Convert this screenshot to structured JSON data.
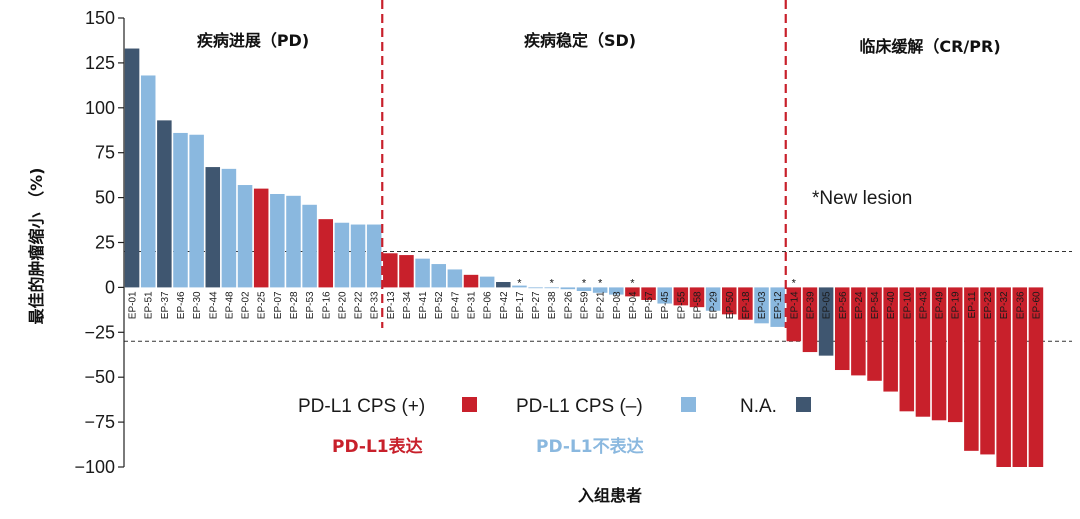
{
  "chart_data": {
    "type": "bar",
    "xlabel": "入组患者",
    "ylabel": "最佳的肿瘤缩小 （%)",
    "ylim": [
      -100,
      150
    ],
    "yticks": [
      150,
      125,
      100,
      75,
      50,
      25,
      0,
      -25,
      -50,
      -75,
      -100
    ],
    "colors": {
      "positive": "#c8202b",
      "negative": "#8ab8df",
      "na": "#3f5670",
      "divider": "#c8202b",
      "reference": "#333333"
    },
    "reference_lines": [
      20,
      -30
    ],
    "regions": [
      {
        "label": "疾病进展（PD)"
      },
      {
        "label": "疾病稳定（SD)"
      },
      {
        "label": "临床缓解（CR/PR)"
      }
    ],
    "region_divider_after": [
      "EP-33",
      "EP-12"
    ],
    "legend": [
      {
        "label": "PD-L1 CPS (+)",
        "group": "positive"
      },
      {
        "label": "PD-L1 CPS (–)",
        "group": "negative"
      },
      {
        "label": "N.A.",
        "group": "na"
      }
    ],
    "legend_cn": {
      "positive": "PD-L1表达",
      "negative": "PD-L1不表达"
    },
    "note": "*New lesion",
    "star_mark": "*",
    "bars": [
      {
        "id": "EP-01",
        "value": 133,
        "group": "na"
      },
      {
        "id": "EP-51",
        "value": 118,
        "group": "negative"
      },
      {
        "id": "EP-37",
        "value": 93,
        "group": "na"
      },
      {
        "id": "EP-46",
        "value": 86,
        "group": "negative"
      },
      {
        "id": "EP-30",
        "value": 85,
        "group": "negative"
      },
      {
        "id": "EP-44",
        "value": 67,
        "group": "na"
      },
      {
        "id": "EP-48",
        "value": 66,
        "group": "negative"
      },
      {
        "id": "EP-02",
        "value": 57,
        "group": "negative"
      },
      {
        "id": "EP-25",
        "value": 55,
        "group": "positive"
      },
      {
        "id": "EP-07",
        "value": 52,
        "group": "negative"
      },
      {
        "id": "EP-28",
        "value": 51,
        "group": "negative"
      },
      {
        "id": "EP-53",
        "value": 46,
        "group": "negative"
      },
      {
        "id": "EP-16",
        "value": 38,
        "group": "positive"
      },
      {
        "id": "EP-20",
        "value": 36,
        "group": "negative"
      },
      {
        "id": "EP-22",
        "value": 35,
        "group": "negative"
      },
      {
        "id": "EP-33",
        "value": 35,
        "group": "negative"
      },
      {
        "id": "EP-13",
        "value": 19,
        "group": "positive"
      },
      {
        "id": "EP-34",
        "value": 18,
        "group": "positive"
      },
      {
        "id": "EP-41",
        "value": 16,
        "group": "negative"
      },
      {
        "id": "EP-52",
        "value": 13,
        "group": "negative"
      },
      {
        "id": "EP-47",
        "value": 10,
        "group": "negative"
      },
      {
        "id": "EP-31",
        "value": 7,
        "group": "positive"
      },
      {
        "id": "EP-06",
        "value": 6,
        "group": "negative"
      },
      {
        "id": "EP-42",
        "value": 3,
        "group": "na"
      },
      {
        "id": "EP-17",
        "value": 1,
        "group": "negative",
        "star": true
      },
      {
        "id": "EP-27",
        "value": 0,
        "group": "negative"
      },
      {
        "id": "EP-38",
        "value": 0,
        "group": "negative",
        "star": true
      },
      {
        "id": "EP-26",
        "value": -1,
        "group": "negative"
      },
      {
        "id": "EP-59",
        "value": -2,
        "group": "negative",
        "star": true
      },
      {
        "id": "EP-21",
        "value": -3,
        "group": "negative",
        "star": true
      },
      {
        "id": "EP-08",
        "value": -4,
        "group": "negative"
      },
      {
        "id": "EP-04",
        "value": -5,
        "group": "positive",
        "star": true
      },
      {
        "id": "EP-57",
        "value": -7,
        "group": "positive"
      },
      {
        "id": "EP-45",
        "value": -9,
        "group": "negative"
      },
      {
        "id": "EP-55",
        "value": -10,
        "group": "positive"
      },
      {
        "id": "EP-58",
        "value": -11,
        "group": "positive"
      },
      {
        "id": "EP-29",
        "value": -13,
        "group": "negative"
      },
      {
        "id": "EP-50",
        "value": -15,
        "group": "positive"
      },
      {
        "id": "EP-18",
        "value": -18,
        "group": "positive"
      },
      {
        "id": "EP-03",
        "value": -20,
        "group": "negative"
      },
      {
        "id": "EP-12",
        "value": -22,
        "group": "negative"
      },
      {
        "id": "EP-14",
        "value": -30,
        "group": "positive",
        "star": true
      },
      {
        "id": "EP-39",
        "value": -36,
        "group": "positive"
      },
      {
        "id": "EP-05",
        "value": -38,
        "group": "na"
      },
      {
        "id": "EP-56",
        "value": -46,
        "group": "positive"
      },
      {
        "id": "EP-24",
        "value": -49,
        "group": "positive"
      },
      {
        "id": "EP-54",
        "value": -52,
        "group": "positive"
      },
      {
        "id": "EP-40",
        "value": -58,
        "group": "positive"
      },
      {
        "id": "EP-10",
        "value": -69,
        "group": "positive"
      },
      {
        "id": "EP-43",
        "value": -72,
        "group": "positive"
      },
      {
        "id": "EP-49",
        "value": -74,
        "group": "positive"
      },
      {
        "id": "EP-19",
        "value": -75,
        "group": "positive"
      },
      {
        "id": "EP-11",
        "value": -91,
        "group": "positive"
      },
      {
        "id": "EP-23",
        "value": -93,
        "group": "positive"
      },
      {
        "id": "EP-32",
        "value": -100,
        "group": "positive"
      },
      {
        "id": "EP-36",
        "value": -100,
        "group": "positive"
      },
      {
        "id": "EP-60",
        "value": -100,
        "group": "positive"
      }
    ]
  }
}
